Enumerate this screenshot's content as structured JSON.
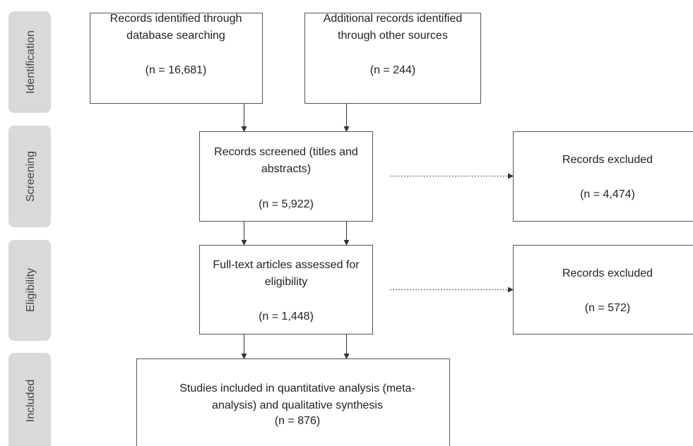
{
  "stages": [
    "Identification",
    "Screening",
    "Eligibility",
    "Included"
  ],
  "nodes": [
    {
      "lines": [
        "Records identified through",
        "database searching"
      ],
      "count": "(n = 16,681)"
    },
    {
      "lines": [
        "Additional records identified",
        "through other sources"
      ],
      "count": "(n = 244)"
    },
    {
      "lines": [
        "Records screened (titles and",
        "abstracts)"
      ],
      "count": "(n = 5,922)"
    },
    {
      "lines": [
        "Records excluded"
      ],
      "count": "(n = 4,474)"
    },
    {
      "lines": [
        "Full-text articles assessed for",
        "eligibility"
      ],
      "count": "(n = 1,448)"
    },
    {
      "lines": [
        "Records excluded"
      ],
      "count": "(n = 572)"
    },
    {
      "lines": [
        "Studies included in quantitative analysis (meta-",
        "analysis) and qualitative synthesis"
      ],
      "count": "(n = 876)"
    }
  ]
}
